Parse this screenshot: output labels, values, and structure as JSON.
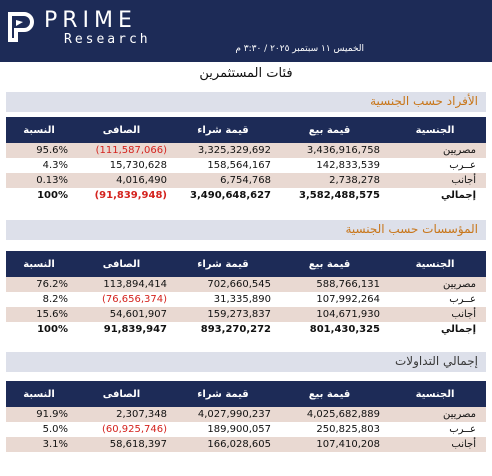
{
  "header": {
    "brand": "PRIME",
    "brand_sub": "Research",
    "date": "الخميس ١١ سبتمبر ٢٠٢٥ / ٣:٣٠ م"
  },
  "page_title": "فئات المستثمرين",
  "columns": [
    "النسبة",
    "الصافى",
    "قيمة شراء",
    "قيمة بيع",
    "الجنسية"
  ],
  "sections": [
    {
      "title": "الأفراد حسب الجنسية",
      "rows": [
        {
          "pct": "95.6%",
          "net": "(111,587,066)",
          "buy": "3,325,329,692",
          "sell": "3,436,916,758",
          "cat": "مصريين",
          "neg": true
        },
        {
          "pct": "4.3%",
          "net": "15,730,628",
          "buy": "158,564,167",
          "sell": "142,833,539",
          "cat": "عــرب",
          "neg": false
        },
        {
          "pct": "0.13%",
          "net": "4,016,490",
          "buy": "6,754,768",
          "sell": "2,738,278",
          "cat": "أجانب",
          "neg": false
        },
        {
          "pct": "100%",
          "net": "(91,839,948)",
          "buy": "3,490,648,627",
          "sell": "3,582,488,575",
          "cat": "إجمالي",
          "neg": true
        }
      ]
    },
    {
      "title": "المؤسسات حسب الجنسية",
      "rows": [
        {
          "pct": "76.2%",
          "net": "113,894,414",
          "buy": "702,660,545",
          "sell": "588,766,131",
          "cat": "مصريين",
          "neg": false
        },
        {
          "pct": "8.2%",
          "net": "(76,656,374)",
          "buy": "31,335,890",
          "sell": "107,992,264",
          "cat": "عــرب",
          "neg": true
        },
        {
          "pct": "15.6%",
          "net": "54,601,907",
          "buy": "159,273,837",
          "sell": "104,671,930",
          "cat": "أجانب",
          "neg": false
        },
        {
          "pct": "100%",
          "net": "91,839,947",
          "buy": "893,270,272",
          "sell": "801,430,325",
          "cat": "إجمالي",
          "neg": false
        }
      ]
    },
    {
      "title": "إجمالي التداولات",
      "rows": [
        {
          "pct": "91.9%",
          "net": "2,307,348",
          "buy": "4,027,990,237",
          "sell": "4,025,682,889",
          "cat": "مصريين",
          "neg": false
        },
        {
          "pct": "5.0%",
          "net": "(60,925,746)",
          "buy": "189,900,057",
          "sell": "250,825,803",
          "cat": "عــرب",
          "neg": true
        },
        {
          "pct": "3.1%",
          "net": "58,618,397",
          "buy": "166,028,605",
          "sell": "107,410,208",
          "cat": "أجانب",
          "neg": false
        }
      ]
    }
  ],
  "colors": {
    "header": "#1d2b57",
    "negative": "#d4231e",
    "section_title": "#c8761a",
    "row_tint": "#e9d9d2"
  }
}
